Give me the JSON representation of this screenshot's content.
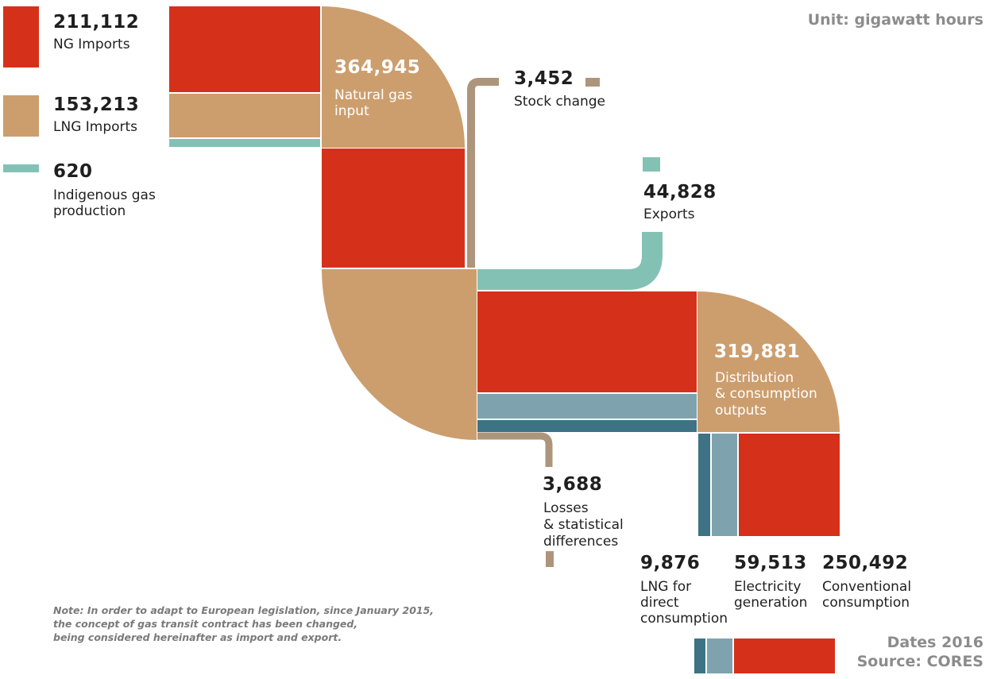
{
  "unit_label": "Unit: gigawatt hours",
  "legend": [
    {
      "value": "211,112",
      "label": "NG Imports"
    },
    {
      "value": "153,213",
      "label": "LNG Imports"
    },
    {
      "value": "620",
      "label": "Indigenous gas production"
    }
  ],
  "natural_gas_input": {
    "value": "364,945",
    "label_line1": "Natural gas",
    "label_line2": "input"
  },
  "stock_change": {
    "value": "3,452",
    "label": "Stock change"
  },
  "exports": {
    "value": "44,828",
    "label": "Exports"
  },
  "distribution": {
    "value": "319,881",
    "label_line1": "Distribution",
    "label_line2": "& consumption",
    "label_line3": "outputs"
  },
  "losses": {
    "value": "3,688",
    "label_line1": "Losses",
    "label_line2": "& statistical",
    "label_line3": "differences"
  },
  "outputs": [
    {
      "value": "9,876",
      "label_line1": "LNG for",
      "label_line2": "direct",
      "label_line3": "consumption"
    },
    {
      "value": "59,513",
      "label_line1": "Electricity",
      "label_line2": "generation"
    },
    {
      "value": "250,492",
      "label_line1": "Conventional",
      "label_line2": "consumption"
    }
  ],
  "note_line1": "Note: In order to adapt to European legislation, since January 2015,",
  "note_line2": "the concept of gas transit contract has been changed,",
  "note_line3": "being considered hereinafter as import and export.",
  "dates": "Dates 2016",
  "source": "Source: CORES",
  "colors": {
    "ng_imports": "#d5311a",
    "lng_imports": "#cc9e6e",
    "indigenous": "#84c1b5",
    "stock": "#ad957c",
    "exports": "#84c1b5",
    "lng_direct": "#3d7385",
    "electricity": "#7ea3ae"
  }
}
